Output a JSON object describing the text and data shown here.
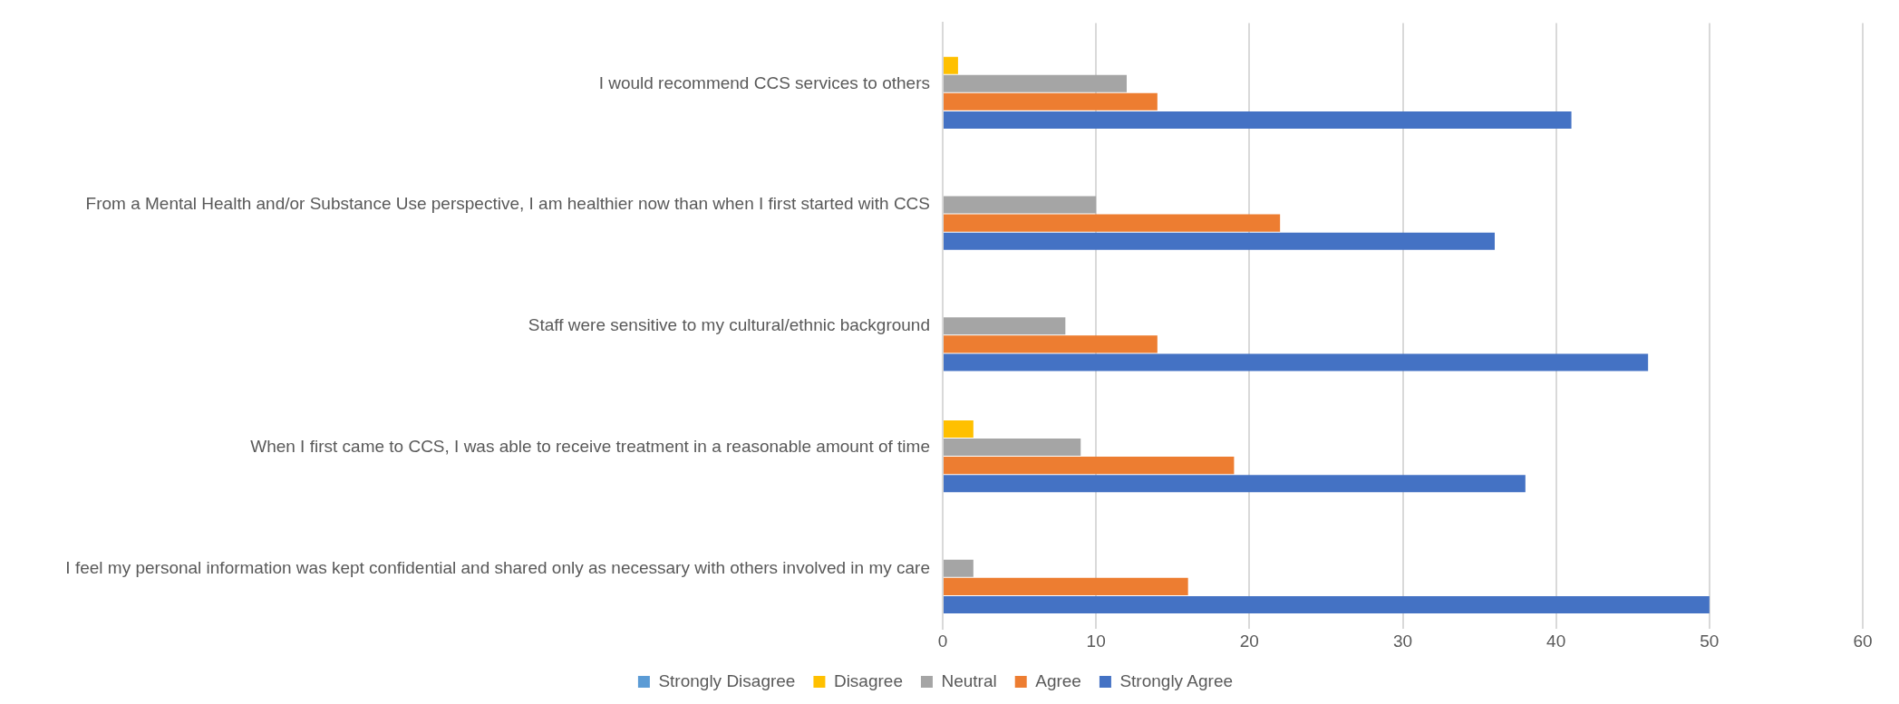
{
  "chart_data": {
    "type": "bar",
    "orientation": "horizontal",
    "categories": [
      "I would recommend CCS services to others",
      "From a Mental Health and/or Substance Use perspective, I am healthier now than when I first started with CCS",
      "Staff were sensitive to my cultural/ethnic background",
      "When I first came to CCS, I was able to receive treatment in a reasonable amount of time",
      "I feel my personal information was kept confidential and shared only as necessary with others involved in my care"
    ],
    "series": [
      {
        "name": "Strongly Disagree",
        "color": "#5b9bd5",
        "values": [
          0,
          0,
          0,
          0,
          0
        ]
      },
      {
        "name": "Disagree",
        "color": "#ffc000",
        "values": [
          1,
          0,
          0,
          2,
          0
        ]
      },
      {
        "name": "Neutral",
        "color": "#a5a5a5",
        "values": [
          12,
          10,
          8,
          9,
          2
        ]
      },
      {
        "name": "Agree",
        "color": "#ed7d31",
        "values": [
          14,
          22,
          14,
          19,
          16
        ]
      },
      {
        "name": "Strongly Agree",
        "color": "#4472c4",
        "values": [
          41,
          36,
          46,
          38,
          50
        ]
      }
    ],
    "xlim": [
      0,
      60
    ],
    "xticks": [
      0,
      10,
      20,
      30,
      40,
      50,
      60
    ],
    "grid": "x",
    "legend": "bottom"
  }
}
